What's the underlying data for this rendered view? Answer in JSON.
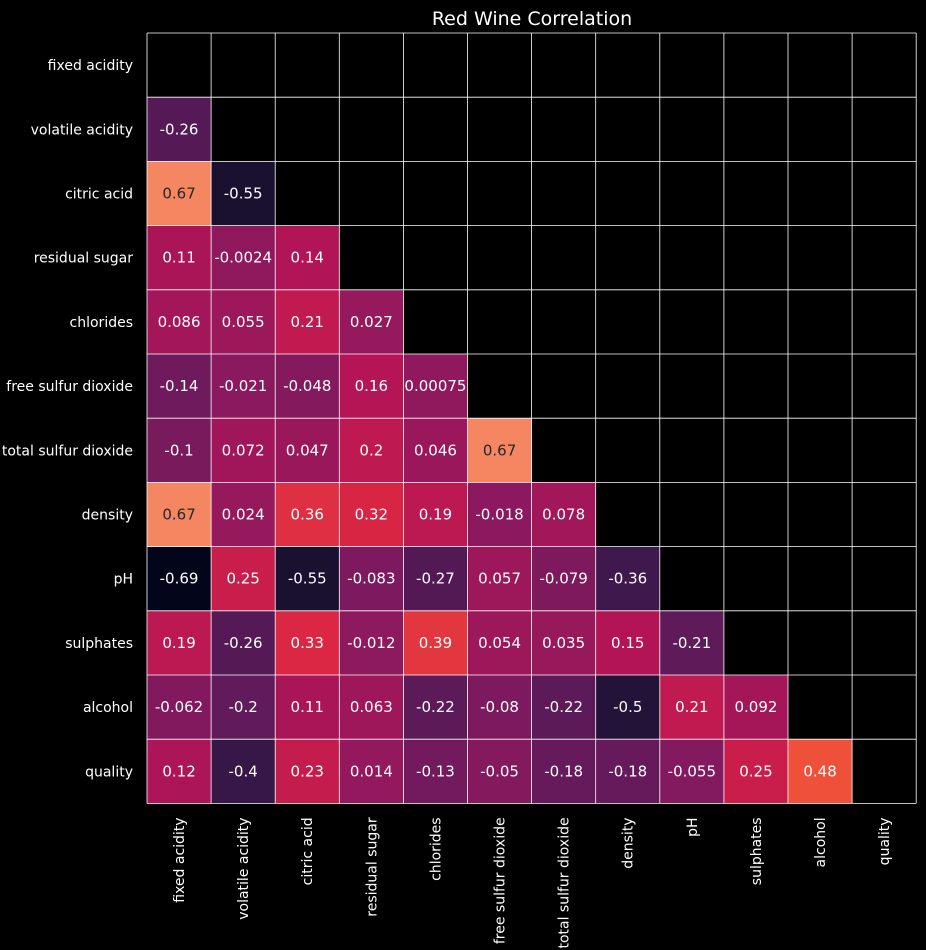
{
  "chart_data": {
    "type": "heatmap",
    "title": "Red Wine Correlation",
    "xlabel": "",
    "ylabel": "",
    "mask": "upper-triangle-including-diagonal",
    "colormap": "rocket",
    "background_color": "#000000",
    "grid_color": "#ffffff",
    "color_range": [
      -0.69,
      1.0
    ],
    "labels": [
      "fixed acidity",
      "volatile acidity",
      "citric acid",
      "residual sugar",
      "chlorides",
      "free sulfur dioxide",
      "total sulfur dioxide",
      "density",
      "pH",
      "sulphates",
      "alcohol",
      "quality"
    ],
    "rows": [
      [],
      [
        "-0.26"
      ],
      [
        "0.67",
        "-0.55"
      ],
      [
        "0.11",
        "-0.0024",
        "0.14"
      ],
      [
        "0.086",
        "0.055",
        "0.21",
        "0.027"
      ],
      [
        "-0.14",
        "-0.021",
        "-0.048",
        "0.16",
        "0.00075"
      ],
      [
        "-0.1",
        "0.072",
        "0.047",
        "0.2",
        "0.046",
        "0.67"
      ],
      [
        "0.67",
        "0.024",
        "0.36",
        "0.32",
        "0.19",
        "-0.018",
        "0.078"
      ],
      [
        "-0.69",
        "0.25",
        "-0.55",
        "-0.083",
        "-0.27",
        "0.057",
        "-0.079",
        "-0.36"
      ],
      [
        "0.19",
        "-0.26",
        "0.33",
        "-0.012",
        "0.39",
        "0.054",
        "0.035",
        "0.15",
        "-0.21"
      ],
      [
        "-0.062",
        "-0.2",
        "0.11",
        "0.063",
        "-0.22",
        "-0.08",
        "-0.22",
        "-0.5",
        "0.21",
        "0.092"
      ],
      [
        "0.12",
        "-0.4",
        "0.23",
        "0.014",
        "-0.13",
        "-0.05",
        "-0.18",
        "-0.18",
        "-0.055",
        "0.25",
        "0.48"
      ]
    ]
  }
}
